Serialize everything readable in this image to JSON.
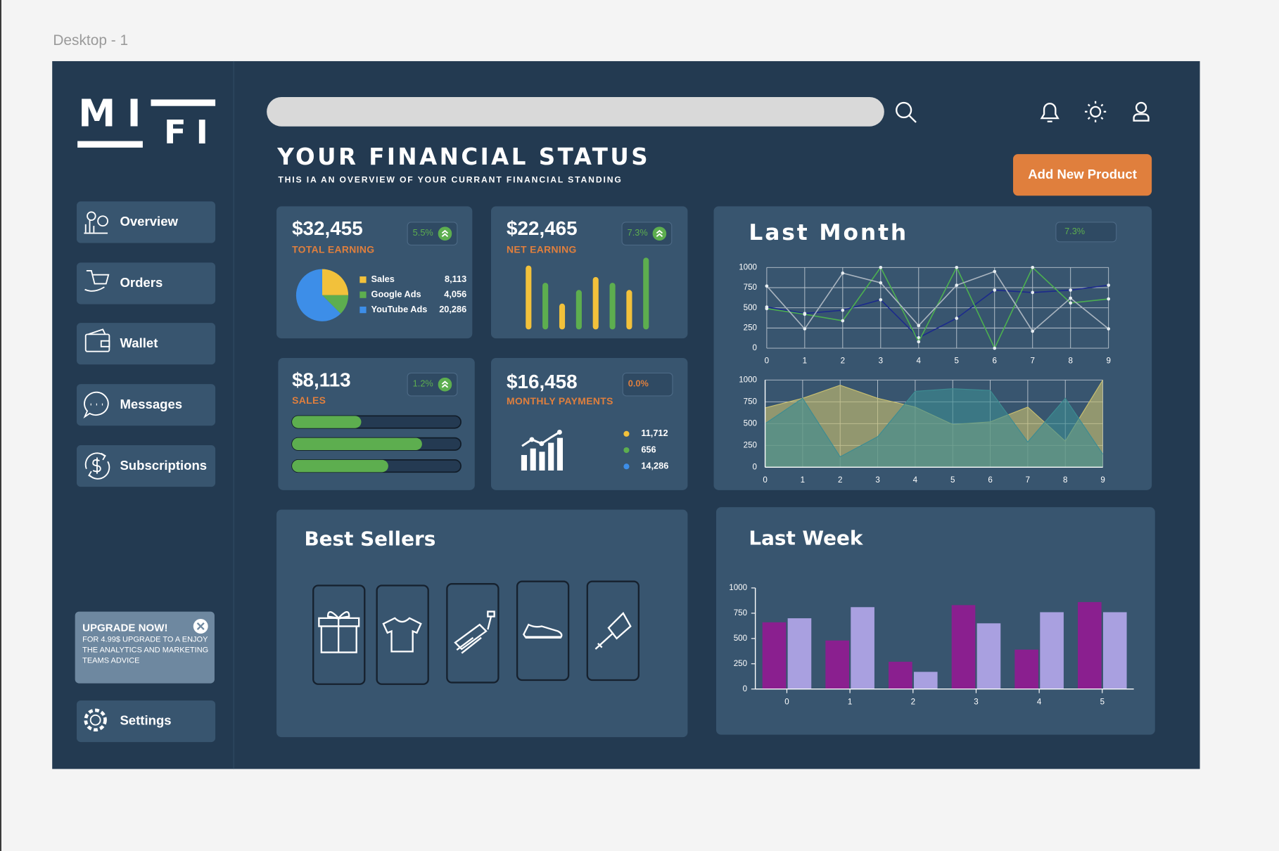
{
  "canvas_label": "Desktop - 1",
  "logo": {
    "top": "MI",
    "bottom": "FI"
  },
  "nav": [
    "Overview",
    "Orders",
    "Wallet",
    "Messages",
    "Subscriptions"
  ],
  "settings": "Settings",
  "upgrade": {
    "title": "UPGRADE NOW!",
    "text": "FOR 4.99$ UPGRADE TO A ENJOY THE ANALYTICS AND MARKETING TEAMS ADVICE"
  },
  "header": {
    "title": "YOUR FINANCIAL STATUS",
    "subtitle": "THIS IA AN OVERVIEW OF YOUR CURRANT FINANCIAL STANDING",
    "button": "Add New Product"
  },
  "cards": [
    {
      "value": "$32,455",
      "label": "TOTAL EARNING",
      "badge": "5.5%"
    },
    {
      "value": "$22,465",
      "label": "NET EARNING",
      "badge": "7.3%"
    },
    {
      "value": "$8,113",
      "label": "SALES",
      "badge": "1.2%",
      "progress": {
        "xlim": [
          0,
          100
        ],
        "values": [
          41,
          77,
          57
        ]
      }
    },
    {
      "value": "$16,458",
      "label": "MONTHLY PAYMENTS",
      "badge": "0.0%",
      "legend": [
        "11,712",
        "656",
        "14,286"
      ],
      "colors": [
        "#f2c13b",
        "#5dae4f",
        "#3d8ee8"
      ]
    }
  ],
  "last_month_badge": "7.3%",
  "best_sellers": {
    "title": "Best Sellers"
  },
  "chart_data": [
    {
      "type": "pie",
      "categories": [
        "Sales",
        "Google Ads",
        "YouTube Ads"
      ],
      "values": [
        8113,
        4056,
        20286
      ],
      "value_labels": [
        "8,113",
        "4,056",
        "20,286"
      ],
      "colors": [
        "#f2c13b",
        "#5dae4f",
        "#3d8ee8"
      ]
    },
    {
      "type": "bar",
      "values": [
        89,
        65,
        36,
        55,
        73,
        65,
        55,
        100
      ],
      "ylim": [
        0,
        100
      ],
      "colors": [
        "#f2c13b",
        "#5dae4f",
        "#f2c13b",
        "#5dae4f",
        "#f2c13b",
        "#5dae4f",
        "#f2c13b",
        "#5dae4f"
      ]
    },
    {
      "type": "line",
      "title": "Last Month",
      "x": [
        0,
        1,
        2,
        3,
        4,
        5,
        6,
        7,
        8,
        9
      ],
      "xlim": [
        0,
        9
      ],
      "xticks": [
        0,
        1,
        2,
        3,
        4,
        5,
        6,
        7,
        8,
        9
      ],
      "ylim": [
        0,
        1000
      ],
      "yticks": [
        0,
        250,
        500,
        750,
        1000
      ],
      "grid": true,
      "series": [
        {
          "color": "#1c2a8c",
          "values": [
            510,
            430,
            470,
            600,
            130,
            370,
            720,
            690,
            720,
            780
          ]
        },
        {
          "color": "#4caf50",
          "values": [
            490,
            420,
            340,
            1000,
            80,
            1000,
            0,
            1000,
            560,
            610
          ]
        },
        {
          "color": "#a9b4bf",
          "values": [
            770,
            240,
            930,
            810,
            280,
            780,
            950,
            210,
            620,
            240
          ]
        }
      ]
    },
    {
      "type": "area",
      "x": [
        0,
        1,
        2,
        3,
        4,
        5,
        6,
        7,
        8,
        9
      ],
      "xlim": [
        0,
        9
      ],
      "xticks": [
        0,
        1,
        2,
        3,
        4,
        5,
        6,
        7,
        8,
        9
      ],
      "ylim": [
        0,
        1000
      ],
      "yticks": [
        0,
        250,
        500,
        750,
        1000
      ],
      "grid": true,
      "series": [
        {
          "color": "#c9c070",
          "values": [
            680,
            790,
            940,
            790,
            690,
            490,
            520,
            690,
            300,
            1000
          ]
        },
        {
          "color": "#3d8c92",
          "values": [
            500,
            790,
            120,
            350,
            870,
            900,
            880,
            290,
            790,
            150
          ]
        }
      ]
    },
    {
      "type": "bar",
      "title": "Last Week",
      "x": [
        0,
        1,
        2,
        3,
        4,
        5
      ],
      "xlim": [
        -0.5,
        5.5
      ],
      "xticks": [
        0,
        1,
        2,
        3,
        4,
        5
      ],
      "ylim": [
        0,
        1000
      ],
      "yticks": [
        0,
        250,
        500,
        750,
        1000
      ],
      "grid": false,
      "series": [
        {
          "color": "#8a1f8f",
          "values": [
            660,
            480,
            270,
            830,
            390,
            860
          ]
        },
        {
          "color": "#a9a0e0",
          "values": [
            700,
            810,
            170,
            650,
            760,
            760
          ]
        }
      ]
    }
  ]
}
